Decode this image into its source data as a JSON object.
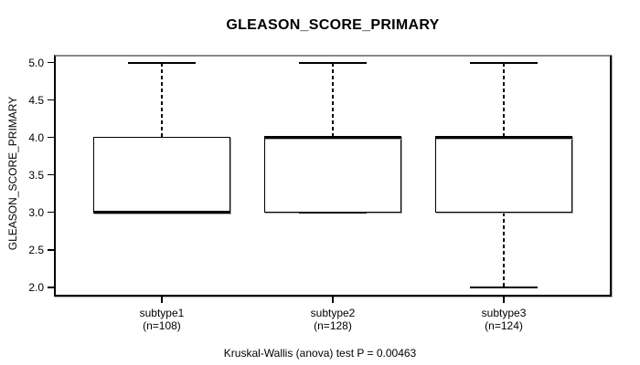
{
  "chart_data": {
    "type": "boxplot",
    "title": "GLEASON_SCORE_PRIMARY",
    "ylabel": "GLEASON_SCORE_PRIMARY",
    "xlabel": "",
    "caption": "Kruskal-Wallis (anova) test P = 0.00463",
    "test": {
      "name": "Kruskal-Wallis (anova) test",
      "p_value": "0.00463"
    },
    "grid": false,
    "legend": "none",
    "ylim": [
      1.9,
      5.08
    ],
    "xlim": [
      0.38,
      3.62
    ],
    "yticks": [
      {
        "value": 2.0,
        "label": "2.0"
      },
      {
        "value": 2.5,
        "label": "2.5"
      },
      {
        "value": 3.0,
        "label": "3.0"
      },
      {
        "value": 3.5,
        "label": "3.5"
      },
      {
        "value": 4.0,
        "label": "4.0"
      },
      {
        "value": 4.5,
        "label": "4.5"
      },
      {
        "value": 5.0,
        "label": "5.0"
      }
    ],
    "box_half_width": 0.4,
    "cap_half_width": 0.2,
    "groups": [
      {
        "label": "subtype1",
        "n_label": "(n=108)",
        "n": 108,
        "position": 1,
        "whisker_low": 3.0,
        "q1": 3.0,
        "median": 3.0,
        "q3": 4.0,
        "whisker_high": 5.0
      },
      {
        "label": "subtype2",
        "n_label": "(n=128)",
        "n": 128,
        "position": 2,
        "whisker_low": 3.0,
        "q1": 3.0,
        "median": 4.0,
        "q3": 4.0,
        "whisker_high": 5.0
      },
      {
        "label": "subtype3",
        "n_label": "(n=124)",
        "n": 124,
        "position": 3,
        "whisker_low": 2.0,
        "q1": 3.0,
        "median": 4.0,
        "q3": 4.0,
        "whisker_high": 5.0
      }
    ],
    "colors": {
      "stroke": "#000000",
      "frame_top": "#888888",
      "shadow": "#b0b0b0",
      "background": "#ffffff",
      "text": "#000000"
    }
  }
}
